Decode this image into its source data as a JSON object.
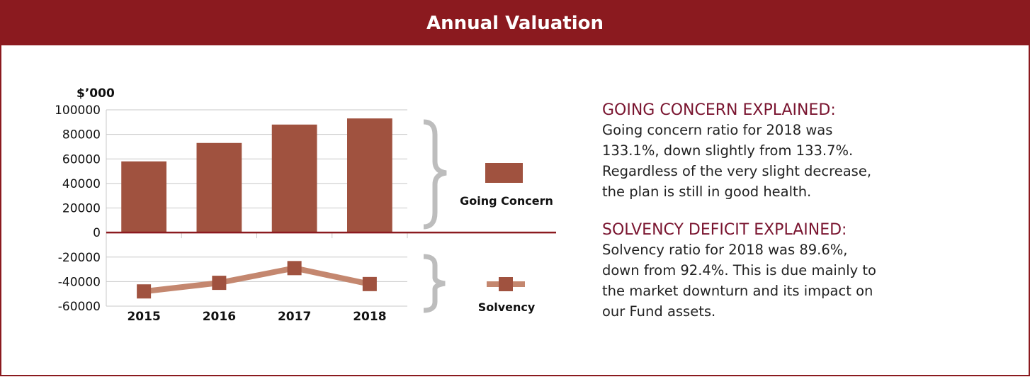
{
  "header": {
    "title": "Annual Valuation"
  },
  "chart_data": {
    "type": "combo",
    "y_label": "$’000",
    "categories": [
      "2015",
      "2016",
      "2017",
      "2018"
    ],
    "series": [
      {
        "name": "Going Concern",
        "type": "bar",
        "color": "#a0523f",
        "values": [
          58000,
          73000,
          88000,
          93000
        ]
      },
      {
        "name": "Solvency",
        "type": "line",
        "color": "#c4876f",
        "marker_color": "#a0523f",
        "values": [
          -48000,
          -41000,
          -29000,
          -42000
        ]
      }
    ],
    "ylim": [
      -60000,
      100000
    ],
    "yticks": [
      -60000,
      -40000,
      -20000,
      0,
      20000,
      40000,
      60000,
      80000,
      100000
    ],
    "grid": true
  },
  "sections": [
    {
      "heading": "GOING CONCERN EXPLAINED:",
      "lines": [
        "Going concern ratio for 2018 was",
        "133.1%, down slightly from 133.7%.",
        "Regardless of the very slight decrease,",
        "the plan is still in good health."
      ]
    },
    {
      "heading": "SOLVENCY DEFICIT EXPLAINED:",
      "lines": [
        "Solvency ratio for 2018 was 89.6%,",
        "down from 92.4%.  This is due mainly to",
        "the market downturn and its impact on",
        "our Fund assets."
      ]
    }
  ]
}
